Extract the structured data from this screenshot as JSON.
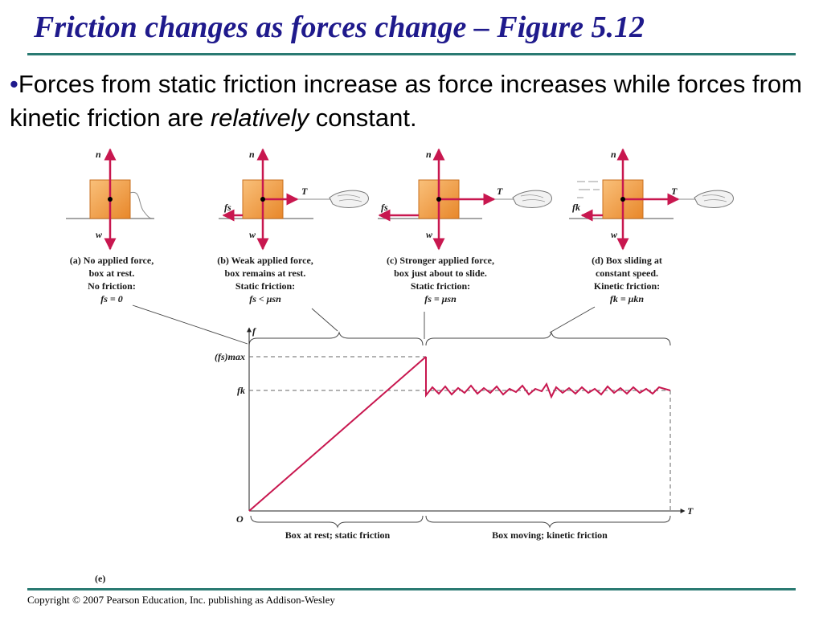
{
  "slide": {
    "title": "Friction changes as forces change – Figure 5.12",
    "bullet": {
      "marker": "•",
      "text_before": "Forces from static friction increase as force increases while forces from kinetic friction are ",
      "emphasis": "relatively",
      "text_after": " constant."
    },
    "footer": "Copyright © 2007 Pearson Education, Inc. publishing as Addison-Wesley"
  },
  "figure": {
    "panels": [
      {
        "id": "a",
        "caption": [
          "(a) No applied force,",
          "box at rest.",
          "No friction:",
          "fs = 0"
        ]
      },
      {
        "id": "b",
        "caption": [
          "(b) Weak applied force,",
          "box remains at rest.",
          "Static friction:",
          "fs < μsn"
        ]
      },
      {
        "id": "c",
        "caption": [
          "(c) Stronger applied force,",
          "box just about to slide.",
          "Static friction:",
          "fs = μsn"
        ]
      },
      {
        "id": "d",
        "caption": [
          "(d) Box sliding at",
          "constant speed.",
          "Kinetic friction:",
          "fk = μkn"
        ]
      }
    ],
    "vector_labels": {
      "normal": "n",
      "weight": "w",
      "tension": "T",
      "static": "fs",
      "kinetic": "fk"
    },
    "graph": {
      "y_label": "f",
      "x_label": "T",
      "origin": "O",
      "fs_max_label": "(fs)max",
      "fk_label": "fk",
      "region_static": "Box at rest; static friction",
      "region_kinetic": "Box moving; kinetic friction",
      "part_label": "(e)"
    },
    "colors": {
      "vector": "#c8174f",
      "box": "#f2a04a",
      "curve": "#c8174f"
    }
  }
}
